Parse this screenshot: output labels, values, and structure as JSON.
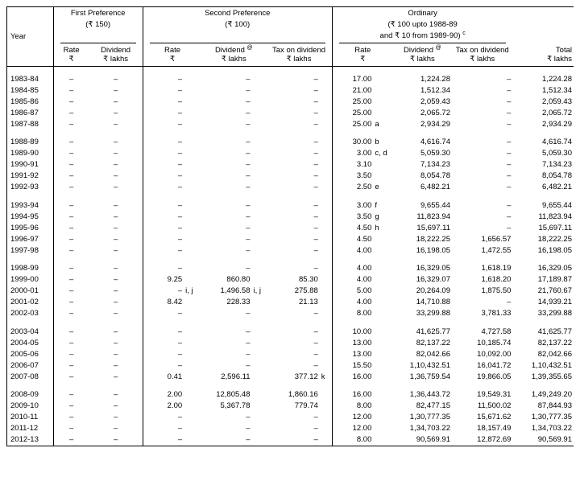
{
  "header": {
    "year": "Year",
    "first_pref": "First Preference",
    "first_pref_amt": "(₹ 150)",
    "second_pref": "Second Preference",
    "second_pref_amt": "(₹ 100)",
    "ordinary": "Ordinary",
    "ordinary_amt1": "(₹ 100 upto 1988-89",
    "ordinary_amt2": "and ₹ 10 from 1989-90)",
    "ordinary_note": "c",
    "rate": "Rate",
    "rupee": "₹",
    "dividend": "Dividend",
    "dividend_at": "@",
    "lakhs": "₹ lakhs",
    "tax_on_div": "Tax on dividend",
    "total": "Total"
  },
  "rows": [
    {
      "g": 1,
      "y": "1983-84",
      "fr": "–",
      "fd": "–",
      "sr": "–",
      "sd": "–",
      "st": "–",
      "or": "17.00",
      "orn": "",
      "od": "1,224.28",
      "ot": "–",
      "tot": "1,224.28"
    },
    {
      "g": 0,
      "y": "1984-85",
      "fr": "–",
      "fd": "–",
      "sr": "–",
      "sd": "–",
      "st": "–",
      "or": "21.00",
      "orn": "",
      "od": "1,512.34",
      "ot": "–",
      "tot": "1,512.34"
    },
    {
      "g": 0,
      "y": "1985-86",
      "fr": "–",
      "fd": "–",
      "sr": "–",
      "sd": "–",
      "st": "–",
      "or": "25.00",
      "orn": "",
      "od": "2,059.43",
      "ot": "–",
      "tot": "2,059.43"
    },
    {
      "g": 0,
      "y": "1986-87",
      "fr": "–",
      "fd": "–",
      "sr": "–",
      "sd": "–",
      "st": "–",
      "or": "25.00",
      "orn": "",
      "od": "2,065.72",
      "ot": "–",
      "tot": "2,065.72"
    },
    {
      "g": 0,
      "y": "1987-88",
      "fr": "–",
      "fd": "–",
      "sr": "–",
      "sd": "–",
      "st": "–",
      "or": "25.00",
      "orn": "a",
      "od": "2,934.29",
      "ot": "–",
      "tot": "2,934.29"
    },
    {
      "g": 1,
      "y": "1988-89",
      "fr": "–",
      "fd": "–",
      "sr": "–",
      "sd": "–",
      "st": "–",
      "or": "30.00",
      "orn": "b",
      "od": "4,616.74",
      "ot": "–",
      "tot": "4,616.74"
    },
    {
      "g": 0,
      "y": "1989-90",
      "fr": "–",
      "fd": "–",
      "sr": "–",
      "sd": "–",
      "st": "–",
      "or": "3.00",
      "orn": "c, d",
      "od": "5,059.30",
      "ot": "–",
      "tot": "5,059.30"
    },
    {
      "g": 0,
      "y": "1990-91",
      "fr": "–",
      "fd": "–",
      "sr": "–",
      "sd": "–",
      "st": "–",
      "or": "3.10",
      "orn": "",
      "od": "7,134.23",
      "ot": "–",
      "tot": "7,134.23"
    },
    {
      "g": 0,
      "y": "1991-92",
      "fr": "–",
      "fd": "–",
      "sr": "–",
      "sd": "–",
      "st": "–",
      "or": "3.50",
      "orn": "",
      "od": "8,054.78",
      "ot": "–",
      "tot": "8,054.78"
    },
    {
      "g": 0,
      "y": "1992-93",
      "fr": "–",
      "fd": "–",
      "sr": "–",
      "sd": "–",
      "st": "–",
      "or": "2.50",
      "orn": "e",
      "od": "6,482.21",
      "ot": "–",
      "tot": "6,482.21"
    },
    {
      "g": 1,
      "y": "1993-94",
      "fr": "–",
      "fd": "–",
      "sr": "–",
      "sd": "–",
      "st": "–",
      "or": "3.00",
      "orn": "f",
      "od": "9,655.44",
      "ot": "–",
      "tot": "9,655.44"
    },
    {
      "g": 0,
      "y": "1994-95",
      "fr": "–",
      "fd": "–",
      "sr": "–",
      "sd": "–",
      "st": "–",
      "or": "3.50",
      "orn": "g",
      "od": "11,823.94",
      "ot": "–",
      "tot": "11,823.94"
    },
    {
      "g": 0,
      "y": "1995-96",
      "fr": "–",
      "fd": "–",
      "sr": "–",
      "sd": "–",
      "st": "–",
      "or": "4.50",
      "orn": "h",
      "od": "15,697.11",
      "ot": "–",
      "tot": "15,697.11"
    },
    {
      "g": 0,
      "y": "1996-97",
      "fr": "–",
      "fd": "–",
      "sr": "–",
      "sd": "–",
      "st": "–",
      "or": "4.50",
      "orn": "",
      "od": "18,222.25",
      "ot": "1,656.57",
      "tot": "18,222.25"
    },
    {
      "g": 0,
      "y": "1997-98",
      "fr": "–",
      "fd": "–",
      "sr": "–",
      "sd": "–",
      "st": "–",
      "or": "4.00",
      "orn": "",
      "od": "16,198.05",
      "ot": "1,472.55",
      "tot": "16,198.05"
    },
    {
      "g": 1,
      "y": "1998-99",
      "fr": "–",
      "fd": "–",
      "sr": "–",
      "sd": "–",
      "st": "–",
      "or": "4.00",
      "orn": "",
      "od": "16,329.05",
      "ot": "1,618.19",
      "tot": "16,329.05"
    },
    {
      "g": 0,
      "y": "1999-00",
      "fr": "–",
      "fd": "–",
      "sr": "9.25",
      "sd": "860.80",
      "sdn": "",
      "st": "85.30",
      "stn": "",
      "or": "4.00",
      "orn": "",
      "od": "16,329.07",
      "ot": "1,618.20",
      "tot": "17,189.87"
    },
    {
      "g": 0,
      "y": "2000-01",
      "fr": "–",
      "fd": "–",
      "sr": "–",
      "srn": "i, j",
      "sd": "1,496.58",
      "sdn": "i, j",
      "st": "275.88",
      "stn": "",
      "or": "5.00",
      "orn": "",
      "od": "20,264.09",
      "ot": "1,875.50",
      "tot": "21,760.67"
    },
    {
      "g": 0,
      "y": "2001-02",
      "fr": "–",
      "fd": "–",
      "sr": "8.42",
      "sd": "228.33",
      "sdn": "",
      "st": "21.13",
      "stn": "",
      "or": "4.00",
      "orn": "",
      "od": "14,710.88",
      "ot": "–",
      "tot": "14,939.21"
    },
    {
      "g": 0,
      "y": "2002-03",
      "fr": "–",
      "fd": "–",
      "sr": "–",
      "sd": "–",
      "st": "–",
      "or": "8.00",
      "orn": "",
      "od": "33,299.88",
      "ot": "3,781.33",
      "tot": "33,299.88"
    },
    {
      "g": 1,
      "y": "2003-04",
      "fr": "–",
      "fd": "–",
      "sr": "–",
      "sd": "–",
      "st": "–",
      "or": "10.00",
      "orn": "",
      "od": "41,625.77",
      "ot": "4,727.58",
      "tot": "41,625.77"
    },
    {
      "g": 0,
      "y": "2004-05",
      "fr": "–",
      "fd": "–",
      "sr": "–",
      "sd": "–",
      "st": "–",
      "or": "13.00",
      "orn": "",
      "od": "82,137.22",
      "ot": "10,185.74",
      "tot": "82,137.22"
    },
    {
      "g": 0,
      "y": "2005-06",
      "fr": "–",
      "fd": "–",
      "sr": "–",
      "sd": "–",
      "st": "–",
      "or": "13.00",
      "orn": "",
      "od": "82,042.66",
      "ot": "10,092.00",
      "tot": "82,042.66"
    },
    {
      "g": 0,
      "y": "2006-07",
      "fr": "–",
      "fd": "–",
      "sr": "–",
      "sd": "–",
      "st": "–",
      "or": "15.50",
      "orn": "",
      "od": "1,10,432.51",
      "ot": "16,041.72",
      "tot": "1,10,432.51"
    },
    {
      "g": 0,
      "y": "2007-08",
      "fr": "–",
      "fd": "–",
      "sr": "0.41",
      "sd": "2,596.11",
      "sdn": "",
      "st": "377.12",
      "stn": "k",
      "or": "16.00",
      "orn": "",
      "od": "1,36,759.54",
      "ot": "19,866.05",
      "tot": "1,39,355.65"
    },
    {
      "g": 1,
      "y": "2008-09",
      "fr": "–",
      "fd": "–",
      "sr": "2.00",
      "sd": "12,805.48",
      "sdn": "",
      "st": "1,860.16",
      "stn": "",
      "or": "16.00",
      "orn": "",
      "od": "1,36,443.72",
      "ot": "19,549.31",
      "tot": "1,49,249.20"
    },
    {
      "g": 0,
      "y": "2009-10",
      "fr": "–",
      "fd": "–",
      "sr": "2.00",
      "sd": "5,367.78",
      "sdn": "",
      "st": "779.74",
      "stn": "",
      "or": "8.00",
      "orn": "",
      "od": "82,477.15",
      "ot": "11,500.02",
      "tot": "87,844.93"
    },
    {
      "g": 0,
      "y": "2010-11",
      "fr": "–",
      "fd": "–",
      "sr": "–",
      "sd": "–",
      "st": "–",
      "or": "12.00",
      "orn": "",
      "od": "1,30,777.35",
      "ot": "15,671.62",
      "tot": "1,30,777.35"
    },
    {
      "g": 0,
      "y": "2011-12",
      "fr": "–",
      "fd": "–",
      "sr": "–",
      "sd": "–",
      "st": "–",
      "or": "12.00",
      "orn": "",
      "od": "1,34,703.22",
      "ot": "18,157.49",
      "tot": "1,34,703.22"
    },
    {
      "g": 0,
      "y": "2012-13",
      "bold": 1,
      "fr": "–",
      "fd": "–",
      "sr": "–",
      "sd": "–",
      "st": "–",
      "or": "8.00",
      "orn": "",
      "od": "90,569.91",
      "ot": "12,872.69",
      "tot": "90,569.91"
    }
  ],
  "colors": {
    "bg": "#ffffff",
    "fg": "#000000",
    "line": "#000000"
  }
}
